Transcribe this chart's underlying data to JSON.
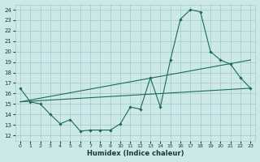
{
  "xlabel": "Humidex (Indice chaleur)",
  "xlim": [
    -0.5,
    23.5
  ],
  "ylim": [
    11.5,
    24.5
  ],
  "xticks": [
    0,
    1,
    2,
    3,
    4,
    5,
    6,
    7,
    8,
    9,
    10,
    11,
    12,
    13,
    14,
    15,
    16,
    17,
    18,
    19,
    20,
    21,
    22,
    23
  ],
  "yticks": [
    12,
    13,
    14,
    15,
    16,
    17,
    18,
    19,
    20,
    21,
    22,
    23,
    24
  ],
  "bg_color": "#cce8e8",
  "grid_color": "#aacccc",
  "line_color": "#1a6b5a",
  "line1_x": [
    0,
    1,
    2,
    3,
    4,
    5,
    6,
    7,
    8,
    9,
    10,
    11,
    12,
    13,
    14,
    15,
    16,
    17,
    18,
    19,
    20,
    21,
    22,
    23
  ],
  "line1_y": [
    16.5,
    15.2,
    15.0,
    14.0,
    13.1,
    13.5,
    12.4,
    12.5,
    12.5,
    12.5,
    13.1,
    14.7,
    14.5,
    17.5,
    14.7,
    19.2,
    23.1,
    24.0,
    23.8,
    20.0,
    19.2,
    18.8,
    17.5,
    16.5
  ],
  "line2_x": [
    0,
    23
  ],
  "line2_y": [
    15.2,
    16.5
  ],
  "line3_x": [
    0,
    23
  ],
  "line3_y": [
    15.2,
    19.2
  ]
}
